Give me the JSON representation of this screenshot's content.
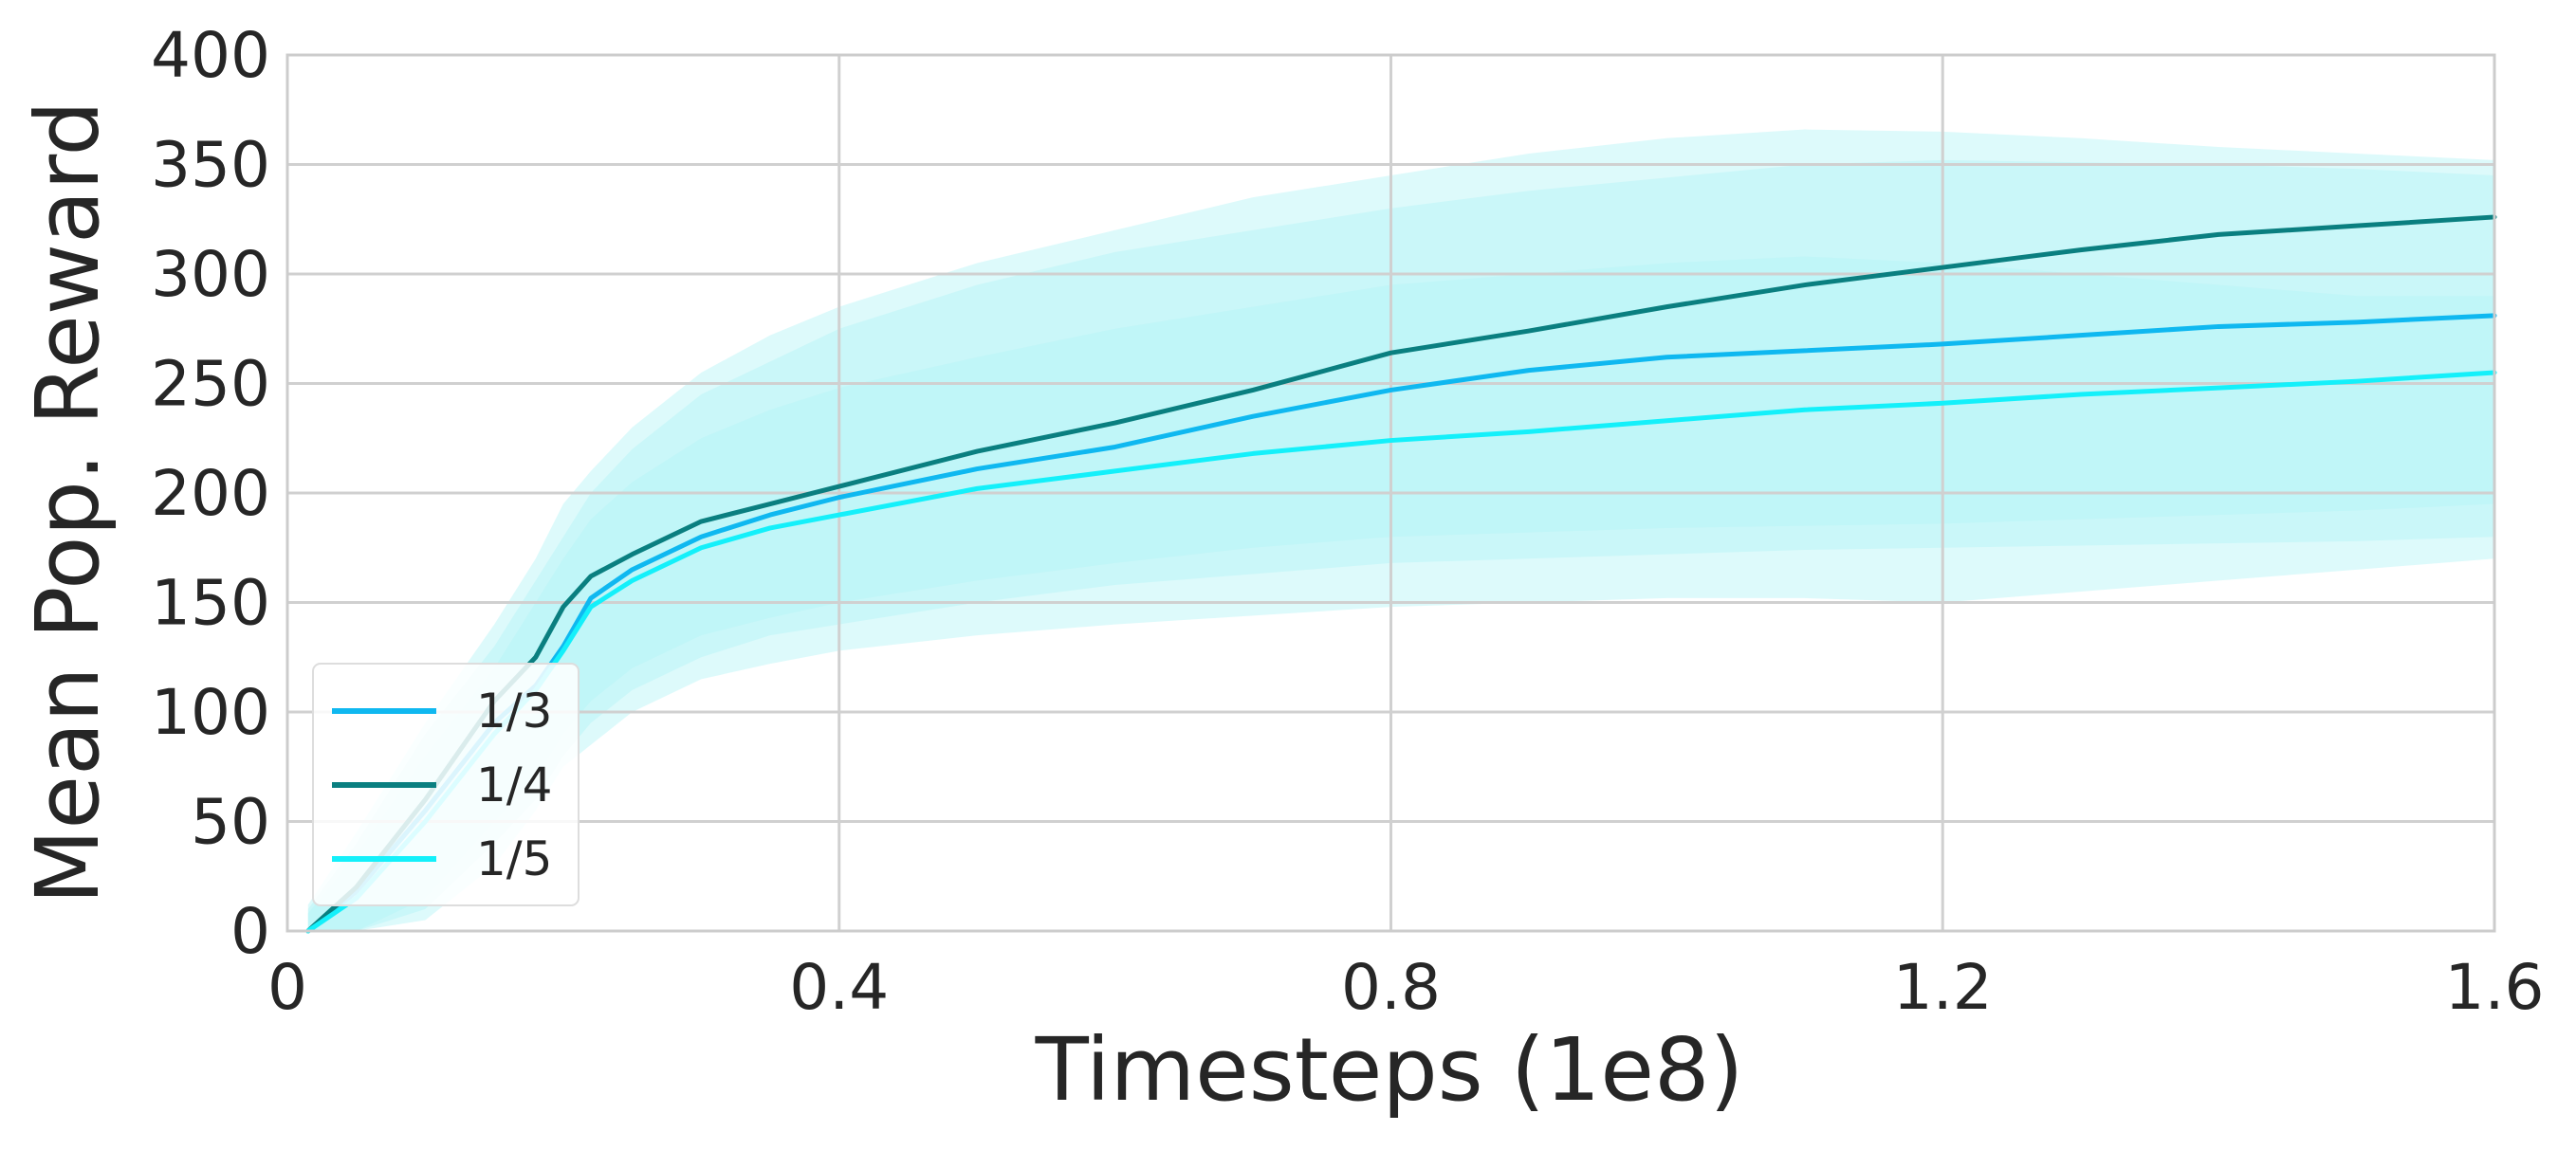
{
  "chart_data": {
    "type": "line",
    "title": "",
    "xlabel": "Timesteps (1e8)",
    "ylabel": "Mean Pop. Reward",
    "xlim": [
      0,
      1.6
    ],
    "ylim": [
      0,
      400
    ],
    "xticks": [
      0,
      0.4,
      0.8,
      1.2,
      1.6
    ],
    "xtick_labels": [
      "0",
      "0.4",
      "0.8",
      "1.2",
      "1.6"
    ],
    "yticks": [
      0,
      50,
      100,
      150,
      200,
      250,
      300,
      350,
      400
    ],
    "ytick_labels": [
      "0",
      "50",
      "100",
      "150",
      "200",
      "250",
      "300",
      "350",
      "400"
    ],
    "grid": true,
    "legend_position": "bottom-left",
    "band_color": "#B3F5F7",
    "x": [
      0.015,
      0.05,
      0.1,
      0.15,
      0.18,
      0.2,
      0.22,
      0.25,
      0.3,
      0.35,
      0.4,
      0.5,
      0.6,
      0.7,
      0.8,
      0.9,
      1.0,
      1.1,
      1.2,
      1.3,
      1.4,
      1.5,
      1.6
    ],
    "series": [
      {
        "name": "1/3",
        "color": "#0FB8F0",
        "values": [
          0,
          18,
          55,
          95,
          112,
          130,
          152,
          165,
          180,
          190,
          198,
          211,
          221,
          235,
          247,
          256,
          262,
          265,
          268,
          272,
          276,
          278,
          281
        ],
        "band_lower": [
          0,
          0,
          10,
          40,
          60,
          80,
          95,
          110,
          125,
          135,
          140,
          150,
          158,
          163,
          168,
          170,
          172,
          174,
          175,
          176,
          177,
          178,
          180
        ],
        "band_upper": [
          10,
          40,
          90,
          130,
          160,
          180,
          200,
          220,
          245,
          260,
          275,
          295,
          310,
          320,
          330,
          338,
          344,
          350,
          352,
          351,
          350,
          348,
          345
        ]
      },
      {
        "name": "1/4",
        "color": "#0A7F80",
        "values": [
          0,
          20,
          60,
          105,
          125,
          148,
          162,
          172,
          187,
          195,
          203,
          219,
          232,
          247,
          264,
          274,
          285,
          295,
          303,
          311,
          318,
          322,
          326
        ],
        "band_lower": [
          0,
          0,
          15,
          50,
          70,
          90,
          105,
          120,
          135,
          143,
          150,
          160,
          168,
          175,
          180,
          182,
          184,
          185,
          186,
          188,
          190,
          192,
          195
        ],
        "band_upper": [
          12,
          45,
          95,
          140,
          170,
          195,
          210,
          230,
          255,
          272,
          285,
          305,
          320,
          335,
          345,
          355,
          362,
          366,
          365,
          362,
          358,
          355,
          352
        ]
      },
      {
        "name": "1/5",
        "color": "#14F0FA",
        "values": [
          0,
          15,
          50,
          90,
          110,
          128,
          148,
          160,
          175,
          184,
          190,
          202,
          210,
          218,
          224,
          228,
          233,
          238,
          241,
          245,
          248,
          251,
          255
        ],
        "band_lower": [
          0,
          0,
          5,
          30,
          55,
          75,
          85,
          100,
          115,
          122,
          128,
          135,
          140,
          144,
          148,
          150,
          152,
          152,
          150,
          155,
          160,
          165,
          170
        ],
        "band_upper": [
          8,
          35,
          80,
          120,
          150,
          170,
          188,
          205,
          225,
          238,
          248,
          262,
          275,
          285,
          295,
          300,
          305,
          308,
          305,
          300,
          295,
          290,
          290
        ]
      }
    ]
  }
}
